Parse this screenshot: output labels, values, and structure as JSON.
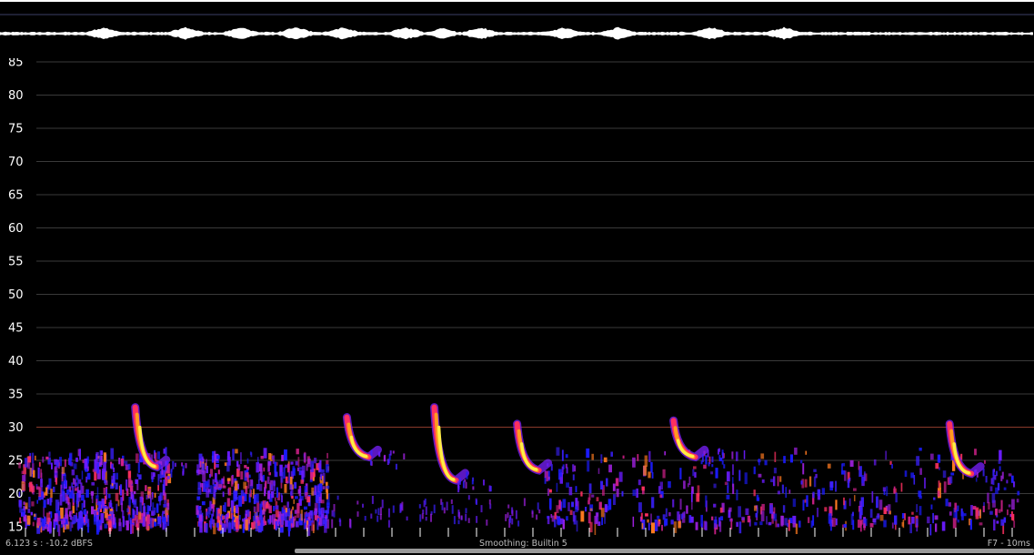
{
  "app": {
    "accent_color": "#ffffff",
    "grid_color": "#3a3a3a",
    "marker_color": "#8a3a2a",
    "scrollbar_color": "#9a9a9a"
  },
  "waveform": {
    "description_icon": "waveform-icon",
    "bursts_at_seconds": [
      1.0,
      1.9,
      2.5,
      3.1,
      3.6,
      4.3,
      5.1,
      6.0,
      6.6,
      7.6,
      8.4
    ]
  },
  "spectrogram": {
    "y_axis_ticks": [
      15,
      20,
      25,
      30,
      35,
      40,
      45,
      50,
      55,
      60,
      65,
      70,
      75,
      80,
      85
    ],
    "highlight_line_value": 30,
    "call_events": [
      {
        "t": 1.45,
        "f_start": 33,
        "f_end": 24
      },
      {
        "t": 3.75,
        "f_start": 31.5,
        "f_end": 25.5
      },
      {
        "t": 4.7,
        "f_start": 33,
        "f_end": 22
      },
      {
        "t": 5.6,
        "f_start": 30.5,
        "f_end": 23.5
      },
      {
        "t": 7.3,
        "f_start": 31,
        "f_end": 25.5
      },
      {
        "t": 10.3,
        "f_start": 30.5,
        "f_end": 23
      }
    ]
  },
  "footer": {
    "cursor_readout": "6.123 s : -10.2 dBFS",
    "smoothing_label": "Smoothing: Builtin 5",
    "fft_label": "F7 - 10ms",
    "scrollbar_start": 0.285,
    "scrollbar_end": 1.0
  }
}
